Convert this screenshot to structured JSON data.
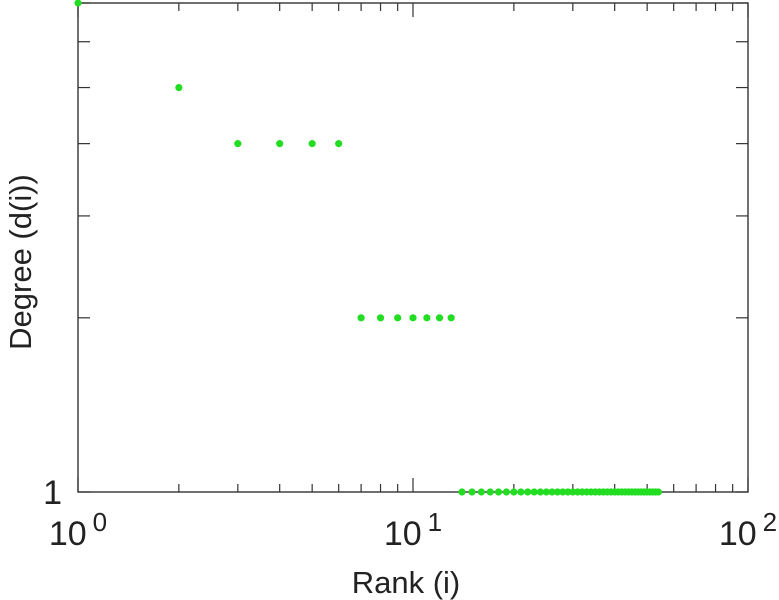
{
  "chart_data": {
    "type": "scatter",
    "title": "",
    "xlabel": "Rank (i)",
    "ylabel": "Degree (d(i))",
    "x_scale": "log",
    "y_scale": "log",
    "xlim": [
      1,
      100
    ],
    "ylim": [
      1,
      7
    ],
    "grid": false,
    "legend": "none",
    "marker_color": "#22dd22",
    "x_tick_labels": [
      {
        "value": 1,
        "base": "10",
        "exp": "0"
      },
      {
        "value": 10,
        "base": "10",
        "exp": "1"
      },
      {
        "value": 100,
        "base": "10",
        "exp": "2"
      }
    ],
    "y_tick_labels": [
      {
        "value": 1,
        "label": "1"
      }
    ],
    "series": [
      {
        "x": [
          1,
          2,
          3,
          4,
          5,
          6,
          7,
          8,
          9,
          10,
          11,
          12,
          13,
          14,
          15,
          16,
          17,
          18,
          19,
          20,
          21,
          22,
          23,
          24,
          25,
          26,
          27,
          28,
          29,
          30,
          31,
          32,
          33,
          34,
          35,
          36,
          37,
          38,
          39,
          40,
          41,
          42,
          43,
          44,
          45,
          46,
          47,
          48,
          49,
          50,
          51,
          52,
          53,
          54
        ],
        "y": [
          7,
          5,
          4,
          4,
          4,
          4,
          2,
          2,
          2,
          2,
          2,
          2,
          2,
          1,
          1,
          1,
          1,
          1,
          1,
          1,
          1,
          1,
          1,
          1,
          1,
          1,
          1,
          1,
          1,
          1,
          1,
          1,
          1,
          1,
          1,
          1,
          1,
          1,
          1,
          1,
          1,
          1,
          1,
          1,
          1,
          1,
          1,
          1,
          1,
          1,
          1,
          1,
          1,
          1
        ]
      }
    ]
  }
}
